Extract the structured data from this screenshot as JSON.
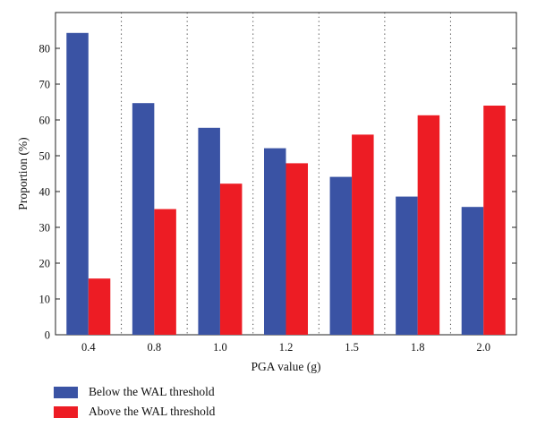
{
  "chart_data": {
    "type": "bar",
    "categories": [
      "0.4",
      "0.8",
      "1.0",
      "1.2",
      "1.5",
      "1.8",
      "2.0"
    ],
    "series": [
      {
        "name": "Below the WAL threshold",
        "color": "#3a53a4",
        "values": [
          84.3,
          64.7,
          57.8,
          52.1,
          44.1,
          38.6,
          35.7
        ]
      },
      {
        "name": "Above the WAL threshold",
        "color": "#ed1c24",
        "values": [
          15.7,
          35.1,
          42.2,
          47.9,
          55.9,
          61.3,
          64.0
        ]
      }
    ],
    "xlabel": "PGA value (g)",
    "ylabel": "Proportion (%)",
    "ylim": [
      0,
      90
    ],
    "yticks": [
      0,
      10,
      20,
      30,
      40,
      50,
      60,
      70,
      80
    ],
    "grid": "vertical dotted separators between categories",
    "legend_position": "bottom-left"
  }
}
